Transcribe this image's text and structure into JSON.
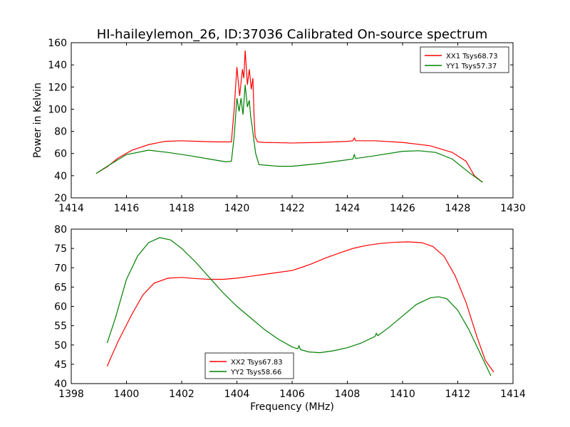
{
  "title": "HI-haileylemon_26, ID:37036 Calibrated On-source spectrum",
  "colors": {
    "red": "#ff0000",
    "green": "#008000"
  },
  "chart_data": [
    {
      "type": "line",
      "ylabel": "Power in Kelvin",
      "xlabel": "",
      "xlim": [
        1414,
        1430
      ],
      "ylim": [
        20,
        160
      ],
      "xticks": [
        1414,
        1416,
        1418,
        1420,
        1422,
        1424,
        1426,
        1428,
        1430
      ],
      "yticks": [
        20,
        40,
        60,
        80,
        100,
        120,
        140,
        160
      ],
      "legend_position": "top-right",
      "series": [
        {
          "name": "XX1 Tsys68.73",
          "color": "#ff0000",
          "points": [
            [
              1414.9,
              42
            ],
            [
              1415.3,
              48
            ],
            [
              1415.7,
              56
            ],
            [
              1416.2,
              63
            ],
            [
              1416.8,
              68
            ],
            [
              1417.4,
              71
            ],
            [
              1418,
              71.5
            ],
            [
              1418.6,
              71
            ],
            [
              1419.3,
              70.5
            ],
            [
              1419.8,
              70.5
            ],
            [
              1419.9,
              100
            ],
            [
              1420.0,
              138
            ],
            [
              1420.1,
              112
            ],
            [
              1420.2,
              136
            ],
            [
              1420.25,
              128
            ],
            [
              1420.3,
              153
            ],
            [
              1420.38,
              122
            ],
            [
              1420.45,
              136
            ],
            [
              1420.52,
              118
            ],
            [
              1420.58,
              128
            ],
            [
              1420.62,
              95
            ],
            [
              1420.66,
              75
            ],
            [
              1420.75,
              70.5
            ],
            [
              1421,
              70
            ],
            [
              1422,
              69.5
            ],
            [
              1423,
              70
            ],
            [
              1424,
              71
            ],
            [
              1424.2,
              71.5
            ],
            [
              1424.25,
              74
            ],
            [
              1424.3,
              71.5
            ],
            [
              1425,
              71.5
            ],
            [
              1426,
              70
            ],
            [
              1427,
              67
            ],
            [
              1427.8,
              61
            ],
            [
              1428.3,
              53
            ],
            [
              1428.6,
              40
            ],
            [
              1428.9,
              34
            ]
          ]
        },
        {
          "name": "YY1 Tsys57.37",
          "color": "#008000",
          "points": [
            [
              1414.9,
              42
            ],
            [
              1415.4,
              50
            ],
            [
              1416,
              59
            ],
            [
              1416.8,
              63
            ],
            [
              1417.5,
              61
            ],
            [
              1418.3,
              58
            ],
            [
              1419,
              55
            ],
            [
              1419.6,
              52.5
            ],
            [
              1419.8,
              53
            ],
            [
              1419.9,
              75
            ],
            [
              1420.0,
              110
            ],
            [
              1420.08,
              98
            ],
            [
              1420.15,
              110
            ],
            [
              1420.22,
              95
            ],
            [
              1420.3,
              122
            ],
            [
              1420.38,
              102
            ],
            [
              1420.45,
              108
            ],
            [
              1420.5,
              93
            ],
            [
              1420.55,
              85
            ],
            [
              1420.6,
              75
            ],
            [
              1420.68,
              60
            ],
            [
              1420.8,
              50
            ],
            [
              1421.5,
              48.5
            ],
            [
              1422,
              48.5
            ],
            [
              1423,
              51
            ],
            [
              1424.2,
              55
            ],
            [
              1424.25,
              59
            ],
            [
              1424.3,
              55.5
            ],
            [
              1425,
              58
            ],
            [
              1426,
              62
            ],
            [
              1426.6,
              62.5
            ],
            [
              1427.2,
              61
            ],
            [
              1427.8,
              55
            ],
            [
              1428.4,
              43
            ],
            [
              1428.9,
              34
            ]
          ]
        }
      ]
    },
    {
      "type": "line",
      "ylabel": "",
      "xlabel": "Frequency (MHz)",
      "xlim": [
        1398,
        1414
      ],
      "ylim": [
        40,
        80
      ],
      "xticks": [
        1398,
        1400,
        1402,
        1404,
        1406,
        1408,
        1410,
        1412,
        1414
      ],
      "yticks": [
        40,
        45,
        50,
        55,
        60,
        65,
        70,
        75,
        80
      ],
      "legend_position": "bottom-center",
      "series": [
        {
          "name": "XX2 Tsys67.83",
          "color": "#ff0000",
          "points": [
            [
              1399.3,
              44.5
            ],
            [
              1399.7,
              51
            ],
            [
              1400.2,
              58
            ],
            [
              1400.6,
              63
            ],
            [
              1401,
              66
            ],
            [
              1401.5,
              67.3
            ],
            [
              1402,
              67.5
            ],
            [
              1402.5,
              67.2
            ],
            [
              1403,
              67
            ],
            [
              1403.5,
              67
            ],
            [
              1404,
              67.3
            ],
            [
              1404.5,
              67.8
            ],
            [
              1405,
              68.3
            ],
            [
              1405.5,
              68.8
            ],
            [
              1406,
              69.3
            ],
            [
              1406.3,
              70
            ],
            [
              1406.7,
              71
            ],
            [
              1407.2,
              72.5
            ],
            [
              1407.7,
              73.8
            ],
            [
              1408.2,
              75
            ],
            [
              1408.7,
              75.8
            ],
            [
              1409.2,
              76.3
            ],
            [
              1409.7,
              76.6
            ],
            [
              1410.2,
              76.7
            ],
            [
              1410.7,
              76.5
            ],
            [
              1411.1,
              75.5
            ],
            [
              1411.5,
              73
            ],
            [
              1411.9,
              68
            ],
            [
              1412.3,
              61
            ],
            [
              1412.7,
              52
            ],
            [
              1413,
              46
            ],
            [
              1413.3,
              43
            ]
          ]
        },
        {
          "name": "YY2 Tsys58.66",
          "color": "#008000",
          "points": [
            [
              1399.3,
              50.5
            ],
            [
              1399.6,
              57
            ],
            [
              1400,
              67
            ],
            [
              1400.4,
              73
            ],
            [
              1400.8,
              76.5
            ],
            [
              1401.2,
              77.8
            ],
            [
              1401.6,
              77.2
            ],
            [
              1402,
              75
            ],
            [
              1402.5,
              71.5
            ],
            [
              1403,
              67.5
            ],
            [
              1403.5,
              63.5
            ],
            [
              1404,
              60
            ],
            [
              1404.5,
              57
            ],
            [
              1405,
              54
            ],
            [
              1405.5,
              51.5
            ],
            [
              1406,
              49.5
            ],
            [
              1406.2,
              49
            ],
            [
              1406.25,
              49.8
            ],
            [
              1406.3,
              48.8
            ],
            [
              1406.6,
              48.2
            ],
            [
              1407,
              48
            ],
            [
              1407.5,
              48.5
            ],
            [
              1408,
              49.3
            ],
            [
              1408.5,
              50.5
            ],
            [
              1409,
              52.2
            ],
            [
              1409.05,
              53
            ],
            [
              1409.1,
              52.4
            ],
            [
              1409.5,
              54.5
            ],
            [
              1410,
              57.5
            ],
            [
              1410.5,
              60.5
            ],
            [
              1411,
              62.2
            ],
            [
              1411.3,
              62.5
            ],
            [
              1411.6,
              62
            ],
            [
              1412,
              59
            ],
            [
              1412.4,
              54
            ],
            [
              1412.8,
              48
            ],
            [
              1413.2,
              42
            ]
          ]
        }
      ]
    }
  ]
}
